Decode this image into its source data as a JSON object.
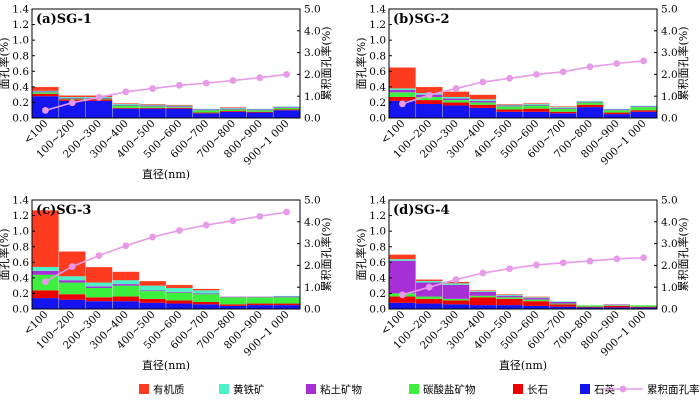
{
  "chart_data": [
    {
      "type": "bar",
      "title": "(a)SG-1",
      "xlabel": "直径(nm)",
      "ylabel": "面孔率(%)",
      "y2label": "累积面孔率(%)",
      "ylim": [
        0,
        1.4
      ],
      "y2lim": [
        0,
        5.0
      ],
      "yticks": [
        "0.0",
        "0.2",
        "0.4",
        "0.6",
        "0.8",
        "1.0",
        "1.2",
        "1.4"
      ],
      "y2ticks": [
        "0.0",
        "1.0",
        "2.0",
        "3.0",
        "4.0",
        "5.0"
      ],
      "stacked": true,
      "categories": [
        "<100",
        "100~200",
        "200~300",
        "300~400",
        "400~500",
        "500~600",
        "600~700",
        "700~800",
        "800~900",
        "900~1 000"
      ],
      "series": [
        {
          "name": "石英",
          "values": [
            0.28,
            0.22,
            0.22,
            0.12,
            0.12,
            0.12,
            0.06,
            0.08,
            0.07,
            0.1
          ]
        },
        {
          "name": "长石",
          "values": [
            0.03,
            0.02,
            0.02,
            0.01,
            0.01,
            0.01,
            0.01,
            0.01,
            0.01,
            0.01
          ]
        },
        {
          "name": "碳酸盐矿物",
          "values": [
            0.02,
            0.01,
            0.01,
            0.03,
            0.02,
            0.01,
            0.03,
            0.02,
            0.02,
            0.02
          ]
        },
        {
          "name": "粘土矿物",
          "values": [
            0.01,
            0.01,
            0.01,
            0.01,
            0.01,
            0.01,
            0.01,
            0.01,
            0.01,
            0.01
          ]
        },
        {
          "name": "黄铁矿",
          "values": [
            0.01,
            0.01,
            0.01,
            0.01,
            0.01,
            0.01,
            0.01,
            0.01,
            0.01,
            0.01
          ]
        },
        {
          "name": "有机质",
          "values": [
            0.05,
            0.02,
            0.02,
            0.01,
            0.01,
            0.01,
            0.0,
            0.01,
            0.0,
            0.0
          ]
        }
      ],
      "line": {
        "name": "累积面孔率",
        "values": [
          0.35,
          0.7,
          0.95,
          1.2,
          1.35,
          1.5,
          1.6,
          1.72,
          1.85,
          2.0
        ]
      }
    },
    {
      "type": "bar",
      "title": "(b)SG-2",
      "xlabel": "",
      "ylabel": "面孔率(%)",
      "y2label": "累积面孔率(%)",
      "ylim": [
        0,
        1.4
      ],
      "y2lim": [
        0,
        5.0
      ],
      "yticks": [
        "0.0",
        "0.2",
        "0.4",
        "0.6",
        "0.8",
        "1.0",
        "1.2",
        "1.4"
      ],
      "y2ticks": [
        "0.0",
        "1.0",
        "2.0",
        "3.0",
        "4.0",
        "5.0"
      ],
      "stacked": true,
      "categories": [
        "<100",
        "100~200",
        "200~300",
        "300~400",
        "400~500",
        "500~600",
        "600~700",
        "700~800",
        "800~900",
        "900~1 000"
      ],
      "series": [
        {
          "name": "石英",
          "values": [
            0.22,
            0.18,
            0.16,
            0.13,
            0.08,
            0.08,
            0.06,
            0.14,
            0.05,
            0.08
          ]
        },
        {
          "name": "长石",
          "values": [
            0.05,
            0.05,
            0.04,
            0.04,
            0.03,
            0.04,
            0.02,
            0.03,
            0.02,
            0.02
          ]
        },
        {
          "name": "碳酸盐矿物",
          "values": [
            0.06,
            0.04,
            0.03,
            0.03,
            0.04,
            0.04,
            0.04,
            0.03,
            0.03,
            0.04
          ]
        },
        {
          "name": "粘土矿物",
          "values": [
            0.03,
            0.03,
            0.02,
            0.02,
            0.01,
            0.01,
            0.01,
            0.01,
            0.01,
            0.01
          ]
        },
        {
          "name": "黄铁矿",
          "values": [
            0.02,
            0.02,
            0.02,
            0.02,
            0.01,
            0.01,
            0.01,
            0.01,
            0.01,
            0.01
          ]
        },
        {
          "name": "有机质",
          "values": [
            0.27,
            0.08,
            0.07,
            0.06,
            0.01,
            0.01,
            0.01,
            0.0,
            0.0,
            0.0
          ]
        }
      ],
      "line": {
        "name": "累积面孔率",
        "values": [
          0.65,
          1.05,
          1.35,
          1.65,
          1.82,
          2.0,
          2.12,
          2.35,
          2.5,
          2.62
        ]
      }
    },
    {
      "type": "bar",
      "title": "(c)SG-3",
      "xlabel": "直径(nm)",
      "ylabel": "面孔率(%)",
      "y2label": "累积面孔率(%)",
      "ylim": [
        0,
        1.4
      ],
      "y2lim": [
        0,
        5.0
      ],
      "yticks": [
        "0.0",
        "0.2",
        "0.4",
        "0.6",
        "0.8",
        "1.0",
        "1.2",
        "1.4"
      ],
      "y2ticks": [
        "0.0",
        "1.0",
        "2.0",
        "3.0",
        "4.0",
        "5.0"
      ],
      "stacked": true,
      "categories": [
        "<100",
        "100~200",
        "200~300",
        "300~400",
        "400~500",
        "500~600",
        "600~700",
        "700~800",
        "800~900",
        "900~1 000"
      ],
      "series": [
        {
          "name": "石英",
          "values": [
            0.14,
            0.12,
            0.1,
            0.1,
            0.08,
            0.07,
            0.06,
            0.04,
            0.05,
            0.05
          ]
        },
        {
          "name": "长石",
          "values": [
            0.1,
            0.07,
            0.05,
            0.06,
            0.05,
            0.04,
            0.03,
            0.02,
            0.02,
            0.02
          ]
        },
        {
          "name": "碳酸盐矿物",
          "values": [
            0.2,
            0.15,
            0.12,
            0.14,
            0.1,
            0.1,
            0.1,
            0.09,
            0.08,
            0.08
          ]
        },
        {
          "name": "粘土矿物",
          "values": [
            0.05,
            0.03,
            0.02,
            0.02,
            0.01,
            0.01,
            0.01,
            0.01,
            0.01,
            0.01
          ]
        },
        {
          "name": "黄铁矿",
          "values": [
            0.05,
            0.05,
            0.05,
            0.05,
            0.06,
            0.05,
            0.04,
            0.0,
            0.0,
            0.01
          ]
        },
        {
          "name": "有机质",
          "values": [
            0.73,
            0.32,
            0.2,
            0.11,
            0.06,
            0.04,
            0.02,
            0.0,
            0.0,
            0.0
          ]
        }
      ],
      "line": {
        "name": "累积面孔率",
        "values": [
          1.25,
          1.95,
          2.45,
          2.9,
          3.3,
          3.6,
          3.85,
          4.05,
          4.25,
          4.45
        ]
      }
    },
    {
      "type": "bar",
      "title": "(d)SG-4",
      "xlabel": "直径(nm)",
      "ylabel": "面孔率(%)",
      "y2label": "累积面孔率(%)",
      "ylim": [
        0,
        1.4
      ],
      "y2lim": [
        0,
        5.0
      ],
      "yticks": [
        "0.0",
        "0.2",
        "0.4",
        "0.6",
        "0.8",
        "1.0",
        "1.2",
        "1.4"
      ],
      "y2ticks": [
        "0.0",
        "1.0",
        "2.0",
        "3.0",
        "4.0",
        "5.0"
      ],
      "stacked": true,
      "categories": [
        "<100",
        "100~200",
        "200~300",
        "300~400",
        "400~500",
        "500~600",
        "600~700",
        "700~800",
        "800~900",
        "900~1 000"
      ],
      "series": [
        {
          "name": "石英",
          "values": [
            0.08,
            0.07,
            0.06,
            0.05,
            0.05,
            0.04,
            0.03,
            0.02,
            0.02,
            0.02
          ]
        },
        {
          "name": "长石",
          "values": [
            0.08,
            0.06,
            0.05,
            0.1,
            0.08,
            0.06,
            0.03,
            0.01,
            0.02,
            0.01
          ]
        },
        {
          "name": "碳酸盐矿物",
          "values": [
            0.04,
            0.03,
            0.02,
            0.02,
            0.02,
            0.02,
            0.01,
            0.02,
            0.01,
            0.02
          ]
        },
        {
          "name": "粘土矿物",
          "values": [
            0.42,
            0.18,
            0.18,
            0.05,
            0.02,
            0.02,
            0.02,
            0.0,
            0.01,
            0.0
          ]
        },
        {
          "name": "黄铁矿",
          "values": [
            0.02,
            0.02,
            0.02,
            0.01,
            0.01,
            0.01,
            0.01,
            0.0,
            0.0,
            0.0
          ]
        },
        {
          "name": "有机质",
          "values": [
            0.06,
            0.02,
            0.02,
            0.01,
            0.01,
            0.01,
            0.0,
            0.0,
            0.0,
            0.0
          ]
        }
      ],
      "line": {
        "name": "累积面孔率",
        "values": [
          0.65,
          1.0,
          1.35,
          1.65,
          1.85,
          2.02,
          2.12,
          2.2,
          2.3,
          2.35
        ]
      }
    }
  ],
  "legend": {
    "items": [
      {
        "name": "有机质",
        "color": "#ff3b1f",
        "kind": "bar"
      },
      {
        "name": "黄铁矿",
        "color": "#4ef0c6",
        "kind": "bar"
      },
      {
        "name": "粘土矿物",
        "color": "#a62fd6",
        "kind": "bar"
      },
      {
        "name": "碳酸盐矿物",
        "color": "#3ef03e",
        "kind": "bar"
      },
      {
        "name": "长石",
        "color": "#ee0000",
        "kind": "bar"
      },
      {
        "name": "石英",
        "color": "#1414ee",
        "kind": "bar"
      },
      {
        "name": "累积面孔率",
        "color": "#e79ae8",
        "kind": "line"
      }
    ]
  },
  "colors": {
    "石英": "#1414ee",
    "长石": "#ee0000",
    "碳酸盐矿物": "#3ef03e",
    "粘土矿物": "#a62fd6",
    "黄铁矿": "#4ef0c6",
    "有机质": "#ff3b1f",
    "累积面孔率": "#e79ae8"
  }
}
